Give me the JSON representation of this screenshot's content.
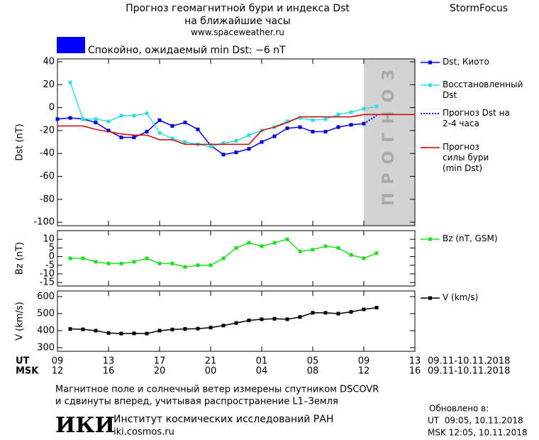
{
  "header": {
    "title": "Прогноз геомагнитной бури и индекса Dst",
    "subtitle": "на ближайшие часы",
    "url": "www.spaceweather.ru",
    "brand": "StormFocus"
  },
  "status": {
    "text": "Спокойно, ожидаемый min Dst: −6 nT",
    "color": "#0000ff"
  },
  "chart_data": [
    {
      "type": "line",
      "ylabel": "Dst (nT)",
      "xlim": [
        0,
        28
      ],
      "ylim": [
        -103,
        42.5
      ],
      "yticks": [
        40,
        20,
        0,
        -20,
        -40,
        -60,
        -80,
        -100
      ],
      "forecast_zone": [
        24,
        28
      ],
      "forecast_label": "ПРОГНОЗ",
      "forecast_color": "#d3d3d3",
      "series": [
        {
          "name": "Dst, Киото",
          "color": "#0000dd",
          "marker": true,
          "x": [
            0,
            1,
            2,
            3,
            4,
            5,
            6,
            7,
            8,
            9,
            10,
            11,
            12,
            13,
            14,
            15,
            16,
            17,
            18,
            19,
            20,
            21,
            22,
            23,
            24
          ],
          "values": [
            -10,
            -9,
            -10,
            -13,
            -20,
            -26,
            -26,
            -21,
            -11,
            -16,
            -13,
            -19,
            -33,
            -41,
            -39,
            -36,
            -30,
            -25,
            -18,
            -17,
            -21,
            -21,
            -17,
            -15,
            -14
          ]
        },
        {
          "name": "Восстановленный Dst",
          "color": "#33dddd",
          "marker": true,
          "x": [
            1,
            2,
            3,
            4,
            5,
            6,
            7,
            8,
            9,
            10,
            11,
            12,
            13,
            14,
            15,
            16,
            17,
            18,
            19,
            20,
            21,
            22,
            23,
            24,
            25
          ],
          "values": [
            22,
            -10,
            -10,
            -12,
            -7,
            -7,
            -5,
            -22,
            -27,
            -30,
            -32,
            -34,
            -31,
            -29,
            -24,
            -20,
            -17,
            -12,
            -9,
            -11,
            -10,
            -6,
            -4,
            -1,
            1
          ]
        },
        {
          "name": "Прогноз Dst на 2-4 часа",
          "color": "#0000dd",
          "dash": true,
          "x": [
            24,
            25
          ],
          "values": [
            -14,
            -7
          ]
        },
        {
          "name": "Прогноз силы бури (min Dst)",
          "color": "#cc0000",
          "x": [
            0,
            2,
            3,
            4,
            5,
            6,
            7,
            8,
            9,
            10,
            15,
            16,
            17,
            18,
            19,
            22,
            23,
            24,
            28
          ],
          "values": [
            -16,
            -16,
            -19,
            -21,
            -23,
            -24,
            -24,
            -28,
            -28,
            -32,
            -32,
            -20,
            -17,
            -13,
            -8,
            -8,
            -8,
            -6,
            -6
          ]
        }
      ]
    },
    {
      "type": "line",
      "ylabel": "Bz (nT)",
      "xlim": [
        0,
        28
      ],
      "ylim": [
        -17,
        15
      ],
      "yticks": [
        10,
        5,
        0,
        -5,
        -10,
        -15
      ],
      "series": [
        {
          "name": "Bz (nT, GSM)",
          "color": "#22dd22",
          "marker": true,
          "x": [
            1,
            2,
            3,
            4,
            5,
            6,
            7,
            8,
            9,
            10,
            11,
            12,
            13,
            14,
            15,
            16,
            17,
            18,
            19,
            20,
            21,
            22,
            23,
            24,
            25
          ],
          "values": [
            -1,
            -1,
            -3,
            -4,
            -4,
            -3,
            -1,
            -4,
            -4,
            -6,
            -5,
            -5,
            -1,
            5,
            8,
            6,
            8,
            10,
            3,
            4,
            6,
            5,
            1,
            -1,
            2
          ]
        }
      ]
    },
    {
      "type": "line",
      "ylabel": "V (km/s)",
      "xlim": [
        0,
        28
      ],
      "ylim": [
        279,
        633
      ],
      "yticks": [
        600,
        500,
        400,
        300
      ],
      "xlabel": "UT",
      "xlabel_msk": "MSK",
      "date_range": "09.11-10.11.2018",
      "xticks": [
        {
          "value": 0,
          "label": "09"
        },
        {
          "value": 4,
          "label": "13"
        },
        {
          "value": 8,
          "label": "17"
        },
        {
          "value": 12,
          "label": "21"
        },
        {
          "value": 16,
          "label": "01"
        },
        {
          "value": 20,
          "label": "05"
        },
        {
          "value": 24,
          "label": "09"
        },
        {
          "value": 28,
          "label": "13"
        }
      ],
      "xticks_msk": [
        {
          "value": 0,
          "label": "12"
        },
        {
          "value": 4,
          "label": "16"
        },
        {
          "value": 8,
          "label": "20"
        },
        {
          "value": 12,
          "label": "00"
        },
        {
          "value": 16,
          "label": "04"
        },
        {
          "value": 20,
          "label": "08"
        },
        {
          "value": 24,
          "label": "12"
        },
        {
          "value": 28,
          "label": "16"
        }
      ],
      "series": [
        {
          "name": "V (km/s)",
          "color": "#000000",
          "marker": true,
          "x": [
            1,
            2,
            3,
            4,
            5,
            6,
            7,
            8,
            9,
            10,
            11,
            12,
            13,
            14,
            15,
            16,
            17,
            18,
            19,
            20,
            21,
            22,
            23,
            24,
            25
          ],
          "values": [
            410,
            408,
            400,
            386,
            383,
            384,
            383,
            400,
            407,
            410,
            412,
            418,
            430,
            445,
            460,
            467,
            470,
            467,
            480,
            505,
            505,
            500,
            510,
            525,
            535
          ]
        }
      ]
    }
  ],
  "footer": {
    "note_line1": "Магнитное поле и солнечный ветер измерены спутником DSCOVR",
    "note_line2": "и сдвинуты вперед, учитывая распространение L1–Земля",
    "logo": "ИКИ",
    "institute": "Институт космических исследований РАН",
    "site": "iki.cosmos.ru",
    "updated": "Обновлено в:",
    "updated_ut": "UT  09:05, 10.11.2018",
    "updated_msk": "MSK 12:05, 10.11.2018"
  }
}
